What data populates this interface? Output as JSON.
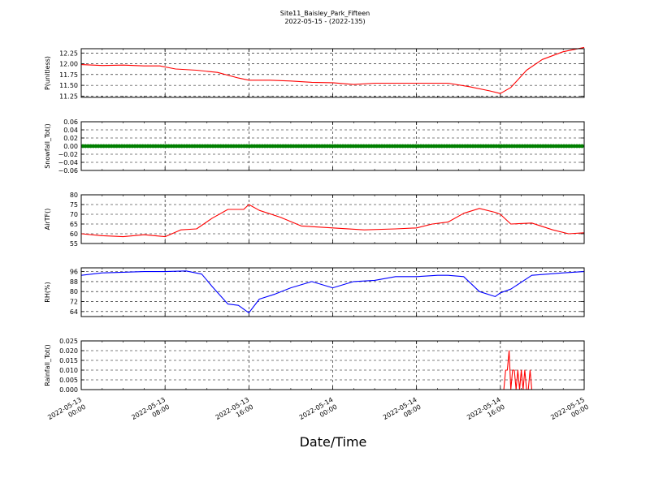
{
  "figure": {
    "title_line1": "Site11_Baisley_Park_Fifteen",
    "title_line2": "2022-05-15 - (2022-135)",
    "xlabel": "Date/Time"
  },
  "chart_data": {
    "type": "line",
    "shared_x": {
      "range": [
        "2022-05-13 00:00",
        "2022-05-15 00:00"
      ],
      "ticks": [
        "2022-05-13 00:00",
        "2022-05-13 08:00",
        "2022-05-13 16:00",
        "2022-05-14 00:00",
        "2022-05-14 08:00",
        "2022-05-14 16:00",
        "2022-05-15 00:00"
      ],
      "tick_labels": [
        [
          "2022-05-13",
          "00:00"
        ],
        [
          "2022-05-13",
          "08:00"
        ],
        [
          "2022-05-13",
          "16:00"
        ],
        [
          "2022-05-14",
          "00:00"
        ],
        [
          "2022-05-14",
          "08:00"
        ],
        [
          "2022-05-14",
          "16:00"
        ],
        [
          "2022-05-15",
          "00:00"
        ]
      ]
    },
    "grid": true,
    "panels": [
      {
        "id": "pressure",
        "ylabel": "P(unitless)",
        "ylim": [
          11.22,
          12.35
        ],
        "yticks": [
          11.25,
          11.5,
          11.75,
          12.0,
          12.25
        ],
        "ytick_labels": [
          "11.25",
          "11.50",
          "11.75",
          "12.00",
          "12.25"
        ],
        "color": "#ff0000",
        "marker": "line",
        "x": [
          "2022-05-13 00:00",
          "2022-05-13 02:00",
          "2022-05-13 04:00",
          "2022-05-13 06:00",
          "2022-05-13 07:30",
          "2022-05-13 09:00",
          "2022-05-13 11:00",
          "2022-05-13 13:00",
          "2022-05-13 15:00",
          "2022-05-13 16:00",
          "2022-05-13 18:00",
          "2022-05-13 20:00",
          "2022-05-13 22:00",
          "2022-05-14 00:00",
          "2022-05-14 02:00",
          "2022-05-14 04:00",
          "2022-05-14 06:00",
          "2022-05-14 09:00",
          "2022-05-14 11:00",
          "2022-05-14 13:00",
          "2022-05-14 15:00",
          "2022-05-14 16:00",
          "2022-05-14 17:00",
          "2022-05-14 18:30",
          "2022-05-14 20:00",
          "2022-05-14 22:00",
          "2022-05-15 00:00"
        ],
        "values": [
          11.98,
          11.96,
          11.97,
          11.95,
          11.95,
          11.88,
          11.85,
          11.8,
          11.67,
          11.62,
          11.62,
          11.6,
          11.57,
          11.56,
          11.52,
          11.55,
          11.55,
          11.55,
          11.55,
          11.47,
          11.37,
          11.31,
          11.45,
          11.85,
          12.1,
          12.28,
          12.38
        ]
      },
      {
        "id": "snowfall",
        "ylabel": "Snowfall_Tot()",
        "ylim": [
          -0.06,
          0.06
        ],
        "yticks": [
          -0.06,
          -0.04,
          -0.02,
          0.0,
          0.02,
          0.04,
          0.06
        ],
        "ytick_labels": [
          "−0.06",
          "−0.04",
          "−0.02",
          "0.00",
          "0.02",
          "0.04",
          "0.06"
        ],
        "color": "#007f00",
        "marker": "dots",
        "x": [
          "2022-05-13 00:00",
          "2022-05-15 00:00"
        ],
        "values": [
          0.0,
          0.0
        ]
      },
      {
        "id": "airtemp",
        "ylabel": "AirTF()",
        "ylim": [
          55,
          80
        ],
        "yticks": [
          55,
          60,
          65,
          70,
          75,
          80
        ],
        "ytick_labels": [
          "55",
          "60",
          "65",
          "70",
          "75",
          "80"
        ],
        "color": "#ff0000",
        "marker": "line",
        "x": [
          "2022-05-13 00:00",
          "2022-05-13 02:00",
          "2022-05-13 04:00",
          "2022-05-13 06:00",
          "2022-05-13 08:00",
          "2022-05-13 09:30",
          "2022-05-13 11:00",
          "2022-05-13 12:30",
          "2022-05-13 14:00",
          "2022-05-13 15:30",
          "2022-05-13 16:00",
          "2022-05-13 17:00",
          "2022-05-13 19:00",
          "2022-05-13 21:00",
          "2022-05-14 00:00",
          "2022-05-14 03:00",
          "2022-05-14 06:00",
          "2022-05-14 08:00",
          "2022-05-14 09:30",
          "2022-05-14 11:00",
          "2022-05-14 12:30",
          "2022-05-14 14:00",
          "2022-05-14 15:30",
          "2022-05-14 16:00",
          "2022-05-14 17:00",
          "2022-05-14 19:00",
          "2022-05-14 21:00",
          "2022-05-14 22:30",
          "2022-05-15 00:00"
        ],
        "values": [
          60,
          59,
          58.5,
          59.5,
          58.5,
          62,
          62.5,
          68,
          72.5,
          72.5,
          75,
          72,
          68.5,
          64,
          63,
          62,
          62.5,
          63,
          65,
          66,
          70.5,
          73,
          71,
          70,
          65,
          65.5,
          62,
          60,
          60.5
        ]
      },
      {
        "id": "rh",
        "ylabel": "RH(%)",
        "ylim": [
          60,
          99
        ],
        "yticks": [
          64,
          72,
          80,
          88,
          96
        ],
        "ytick_labels": [
          "64",
          "72",
          "80",
          "88",
          "96"
        ],
        "color": "#0000ff",
        "marker": "line",
        "x": [
          "2022-05-13 00:00",
          "2022-05-13 02:00",
          "2022-05-13 04:00",
          "2022-05-13 06:00",
          "2022-05-13 08:00",
          "2022-05-13 10:00",
          "2022-05-13 11:30",
          "2022-05-13 12:30",
          "2022-05-13 14:00",
          "2022-05-13 15:00",
          "2022-05-13 16:00",
          "2022-05-13 17:00",
          "2022-05-13 18:30",
          "2022-05-13 20:00",
          "2022-05-13 22:00",
          "2022-05-14 00:00",
          "2022-05-14 02:00",
          "2022-05-14 04:00",
          "2022-05-14 06:00",
          "2022-05-14 08:00",
          "2022-05-14 10:00",
          "2022-05-14 11:00",
          "2022-05-14 12:30",
          "2022-05-14 14:00",
          "2022-05-14 15:30",
          "2022-05-14 16:00",
          "2022-05-14 17:00",
          "2022-05-14 19:00",
          "2022-05-14 22:00",
          "2022-05-15 00:00"
        ],
        "values": [
          93,
          95,
          95.5,
          96,
          96,
          96.5,
          94,
          84,
          70,
          69,
          63,
          74,
          78,
          83,
          88,
          83,
          88,
          89,
          92,
          92,
          93,
          93,
          92,
          80,
          76,
          79,
          82,
          93,
          95,
          96
        ]
      },
      {
        "id": "rainfall",
        "ylabel": "Rainfall_Tot()",
        "ylim": [
          0,
          0.025
        ],
        "yticks": [
          0.0,
          0.005,
          0.01,
          0.015,
          0.02,
          0.025
        ],
        "ytick_labels": [
          "0.000",
          "0.005",
          "0.010",
          "0.015",
          "0.020",
          "0.025"
        ],
        "color": "#ff0000",
        "marker": "line",
        "x": [
          "2022-05-13 00:00",
          "2022-05-14 16:00",
          "2022-05-14 16:20",
          "2022-05-14 16:30",
          "2022-05-14 16:40",
          "2022-05-14 16:50",
          "2022-05-14 17:00",
          "2022-05-14 17:10",
          "2022-05-14 17:20",
          "2022-05-14 17:30",
          "2022-05-14 17:40",
          "2022-05-14 17:50",
          "2022-05-14 18:00",
          "2022-05-14 18:10",
          "2022-05-14 18:20",
          "2022-05-14 18:30",
          "2022-05-14 18:40",
          "2022-05-14 18:50",
          "2022-05-14 19:00",
          "2022-05-14 19:10",
          "2022-05-14 19:20",
          "2022-05-14 19:30",
          "2022-05-15 00:00"
        ],
        "values": [
          0,
          0,
          0,
          0.01,
          0.01,
          0.02,
          0,
          0.01,
          0.01,
          0,
          0.01,
          0,
          0.01,
          0,
          0.01,
          0,
          0,
          0.01,
          0,
          0,
          0,
          0,
          0
        ]
      }
    ]
  }
}
